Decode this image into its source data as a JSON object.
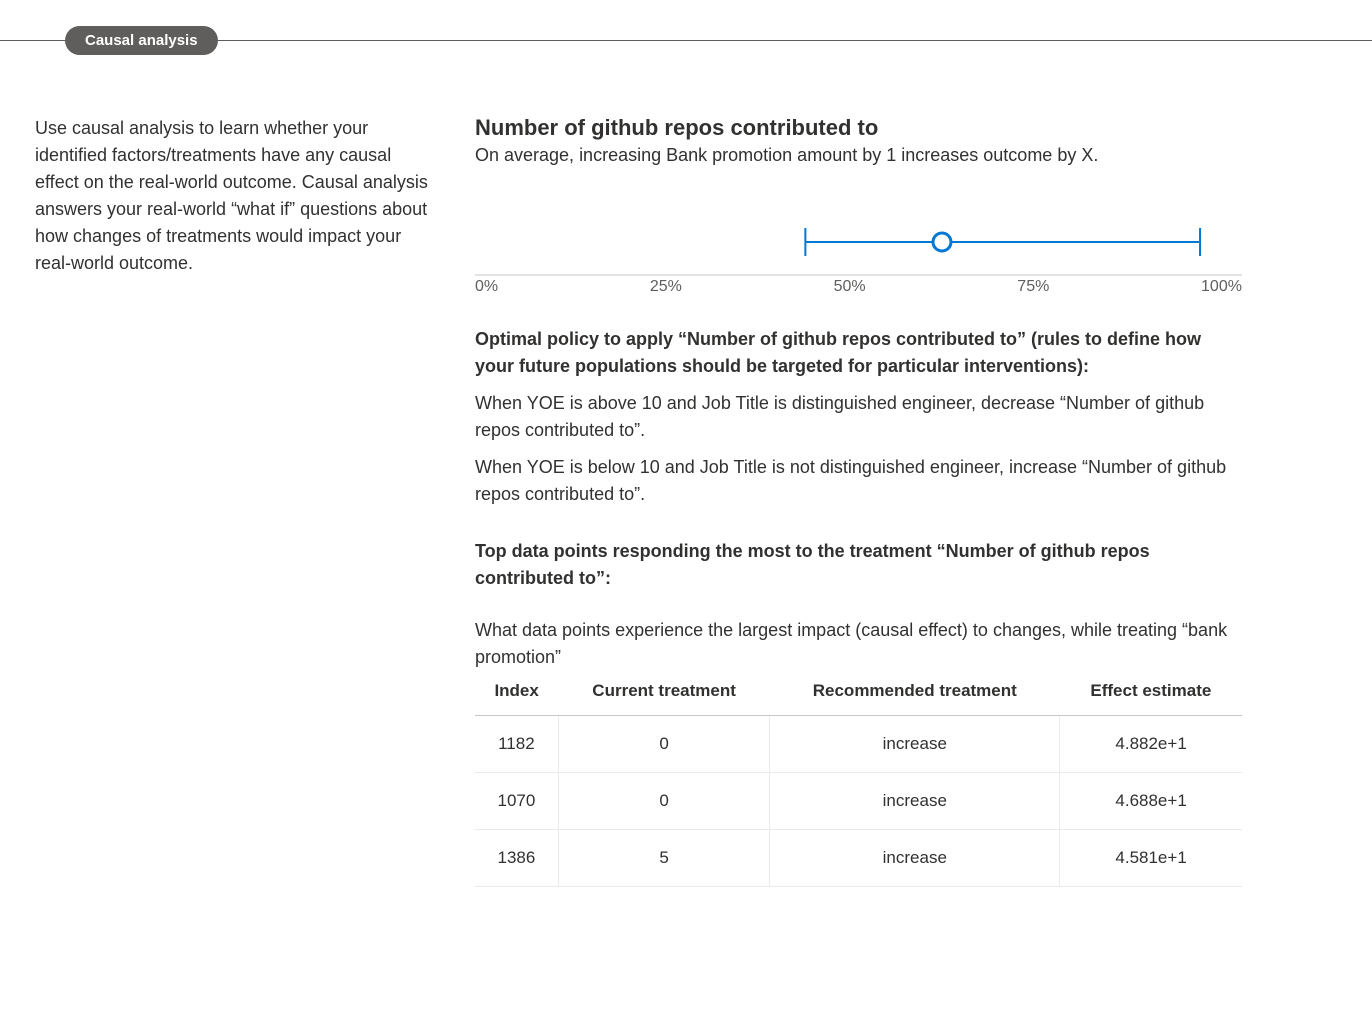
{
  "tab": {
    "label": "Causal analysis"
  },
  "intro": "Use causal analysis to learn whether your identified factors/treatments have any causal effect on the real-world outcome. Causal analysis answers your real-world “what if” questions about how changes of treatments would impact your real-world outcome.",
  "main": {
    "title": "Number of github repos contributed to",
    "subtitle": "On average, increasing Bank promotion amount by 1 increases outcome by X."
  },
  "chart": {
    "type": "confidence-interval",
    "domain_min": 0,
    "domain_max": 100,
    "lower": 43,
    "point": 61,
    "upper": 95,
    "tick_labels": [
      "0%",
      "25%",
      "50%",
      "75%",
      "100%"
    ],
    "tick_positions": [
      0,
      25,
      50,
      75,
      100
    ],
    "line_color": "#0078d4",
    "marker_stroke": "#0078d4",
    "marker_fill": "#ffffff",
    "marker_radius": 9,
    "marker_stroke_width": 3,
    "whisker_height": 28,
    "axis_color": "#c8c6c4",
    "label_color": "#605e5c"
  },
  "policy": {
    "heading": "Optimal policy to apply “Number of github repos contributed to” (rules to define how your future populations should be targeted for particular interventions):",
    "rules": [
      "When YOE is above 10 and Job Title is distinguished engineer, decrease “Number of github repos contributed to”.",
      "When YOE is below 10 and Job Title is not distinguished engineer, increase “Number of github repos contributed to”."
    ]
  },
  "top_points": {
    "heading": "Top data points responding the most to the treatment “Number of github repos contributed to”:",
    "intro": "What data points experience the largest impact (causal effect) to changes, while treating “bank promotion”"
  },
  "table": {
    "columns": [
      "Index",
      "Current treatment",
      "Recommended treatment",
      "Effect estimate"
    ],
    "rows": [
      [
        "1182",
        "0",
        "increase",
        "4.882e+1"
      ],
      [
        "1070",
        "0",
        "increase",
        "4.688e+1"
      ],
      [
        "1386",
        "5",
        "increase",
        "4.581e+1"
      ]
    ]
  }
}
